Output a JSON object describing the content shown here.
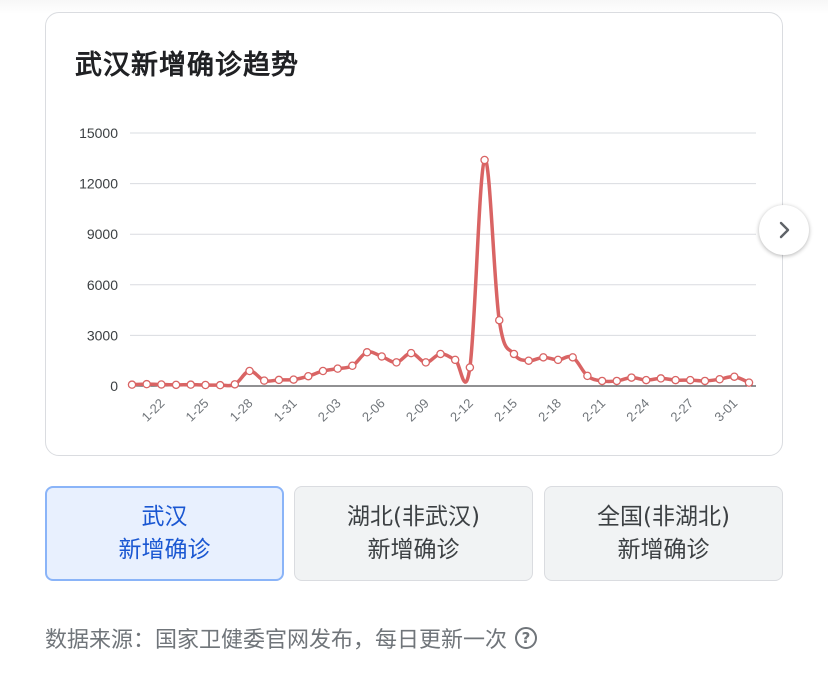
{
  "card": {
    "title": "武汉新增确诊趋势"
  },
  "chart_data": {
    "type": "line",
    "title": "武汉新增确诊趋势",
    "ylim": [
      0,
      15000
    ],
    "yticks": [
      0,
      3000,
      6000,
      9000,
      12000,
      15000
    ],
    "xtick_labels": [
      "1-22",
      "1-25",
      "1-28",
      "1-31",
      "2-03",
      "2-06",
      "2-09",
      "2-12",
      "2-15",
      "2-18",
      "2-21",
      "2-24",
      "2-27",
      "3-01"
    ],
    "color": "#d96464",
    "dates": [
      "1-20",
      "1-21",
      "1-22",
      "1-23",
      "1-24",
      "1-25",
      "1-26",
      "1-27",
      "1-28",
      "1-29",
      "1-30",
      "1-31",
      "2-01",
      "2-02",
      "2-03",
      "2-04",
      "2-05",
      "2-06",
      "2-07",
      "2-08",
      "2-09",
      "2-10",
      "2-11",
      "2-12",
      "2-13",
      "2-14",
      "2-15",
      "2-16",
      "2-17",
      "2-18",
      "2-19",
      "2-20",
      "2-21",
      "2-22",
      "2-23",
      "2-24",
      "2-25",
      "2-26",
      "2-27",
      "2-28",
      "2-29",
      "3-01",
      "3-02"
    ],
    "values": [
      80,
      110,
      90,
      70,
      80,
      60,
      50,
      100,
      890,
      320,
      360,
      380,
      580,
      890,
      1030,
      1200,
      2000,
      1750,
      1400,
      1950,
      1400,
      1900,
      1550,
      1100,
      13400,
      3900,
      1900,
      1500,
      1700,
      1550,
      1700,
      600,
      300,
      300,
      500,
      350,
      450,
      350,
      350,
      300,
      400,
      550,
      200
    ]
  },
  "nav": {
    "next_icon": "chevron-right-icon"
  },
  "buttons": [
    {
      "line1": "武汉",
      "line2": "新增确诊",
      "active": true
    },
    {
      "line1": "湖北(非武汉)",
      "line2": "新增确诊",
      "active": false
    },
    {
      "line1": "全国(非湖北)",
      "line2": "新增确诊",
      "active": false
    }
  ],
  "footer": {
    "source": "数据来源：国家卫健委官网发布，每日更新一次",
    "help_icon": "?"
  }
}
